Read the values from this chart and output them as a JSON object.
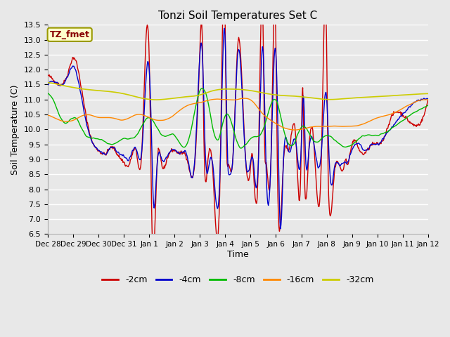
{
  "title": "Tonzi Soil Temperatures Set C",
  "xlabel": "Time",
  "ylabel": "Soil Temperature (C)",
  "ylim": [
    6.5,
    13.5
  ],
  "annotation": "TZ_fmet",
  "legend_labels": [
    "-2cm",
    "-4cm",
    "-8cm",
    "-16cm",
    "-32cm"
  ],
  "line_colors": [
    "#cc0000",
    "#0000cc",
    "#00bb00",
    "#ff8800",
    "#cccc00"
  ],
  "background_color": "#e8e8e8",
  "plot_bg_color": "#e8e8e8",
  "grid_color": "#ffffff",
  "x_tick_labels": [
    "Dec 28",
    "Dec 29",
    "Dec 30",
    "Dec 31",
    "Jan 1",
    "Jan 2",
    "Jan 3",
    "Jan 4",
    "Jan 5",
    "Jan 6",
    "Jan 7",
    "Jan 8",
    "Jan 9",
    "Jan 10",
    "Jan 11",
    "Jan 12"
  ]
}
